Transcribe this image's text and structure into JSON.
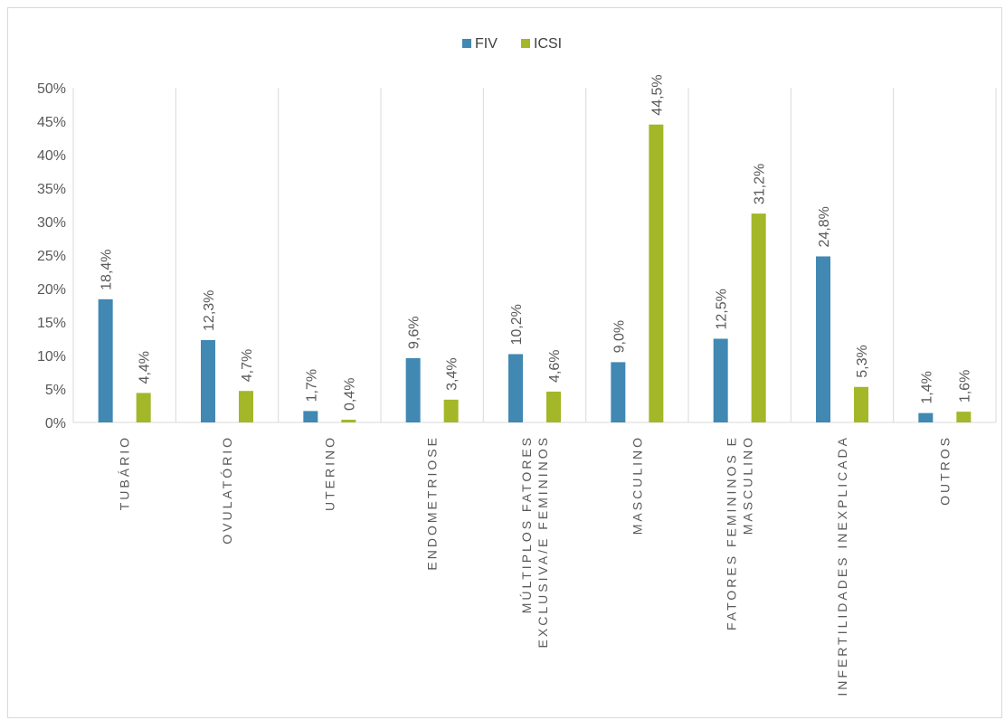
{
  "chart_data": {
    "type": "bar",
    "title": "",
    "xlabel": "",
    "ylabel": "",
    "ylim": [
      0,
      50
    ],
    "yticks": [
      "0%",
      "5%",
      "10%",
      "15%",
      "20%",
      "25%",
      "30%",
      "35%",
      "40%",
      "45%",
      "50%"
    ],
    "grid": "vertical category separators",
    "legend_position": "top",
    "categories": [
      [
        "TUBÁRIO"
      ],
      [
        "OVULATÓRIO"
      ],
      [
        "UTERINO"
      ],
      [
        "ENDOMETRIOSE"
      ],
      [
        "MÚLTIPLOS FATORES",
        "EXCLUSIVA/E FEMININOS"
      ],
      [
        "MASCULINO"
      ],
      [
        "FATORES FEMININOS E",
        "MASCULINO"
      ],
      [
        "INFERTILIDADES INEXPLICADA"
      ],
      [
        "OUTROS"
      ]
    ],
    "series": [
      {
        "name": "FIV",
        "color": "#4188b3",
        "values": [
          18.4,
          12.3,
          1.7,
          9.6,
          10.2,
          9.0,
          12.5,
          24.8,
          1.4
        ],
        "labels": [
          "18,4%",
          "12,3%",
          "1,7%",
          "9,6%",
          "10,2%",
          "9,0%",
          "12,5%",
          "24,8%",
          "1,4%"
        ]
      },
      {
        "name": "ICSI",
        "color": "#a3b728",
        "values": [
          4.4,
          4.7,
          0.4,
          3.4,
          4.6,
          44.5,
          31.2,
          5.3,
          1.6
        ],
        "labels": [
          "4,4%",
          "4,7%",
          "0,4%",
          "3,4%",
          "4,6%",
          "44,5%",
          "31,2%",
          "5,3%",
          "1,6%"
        ]
      }
    ]
  }
}
